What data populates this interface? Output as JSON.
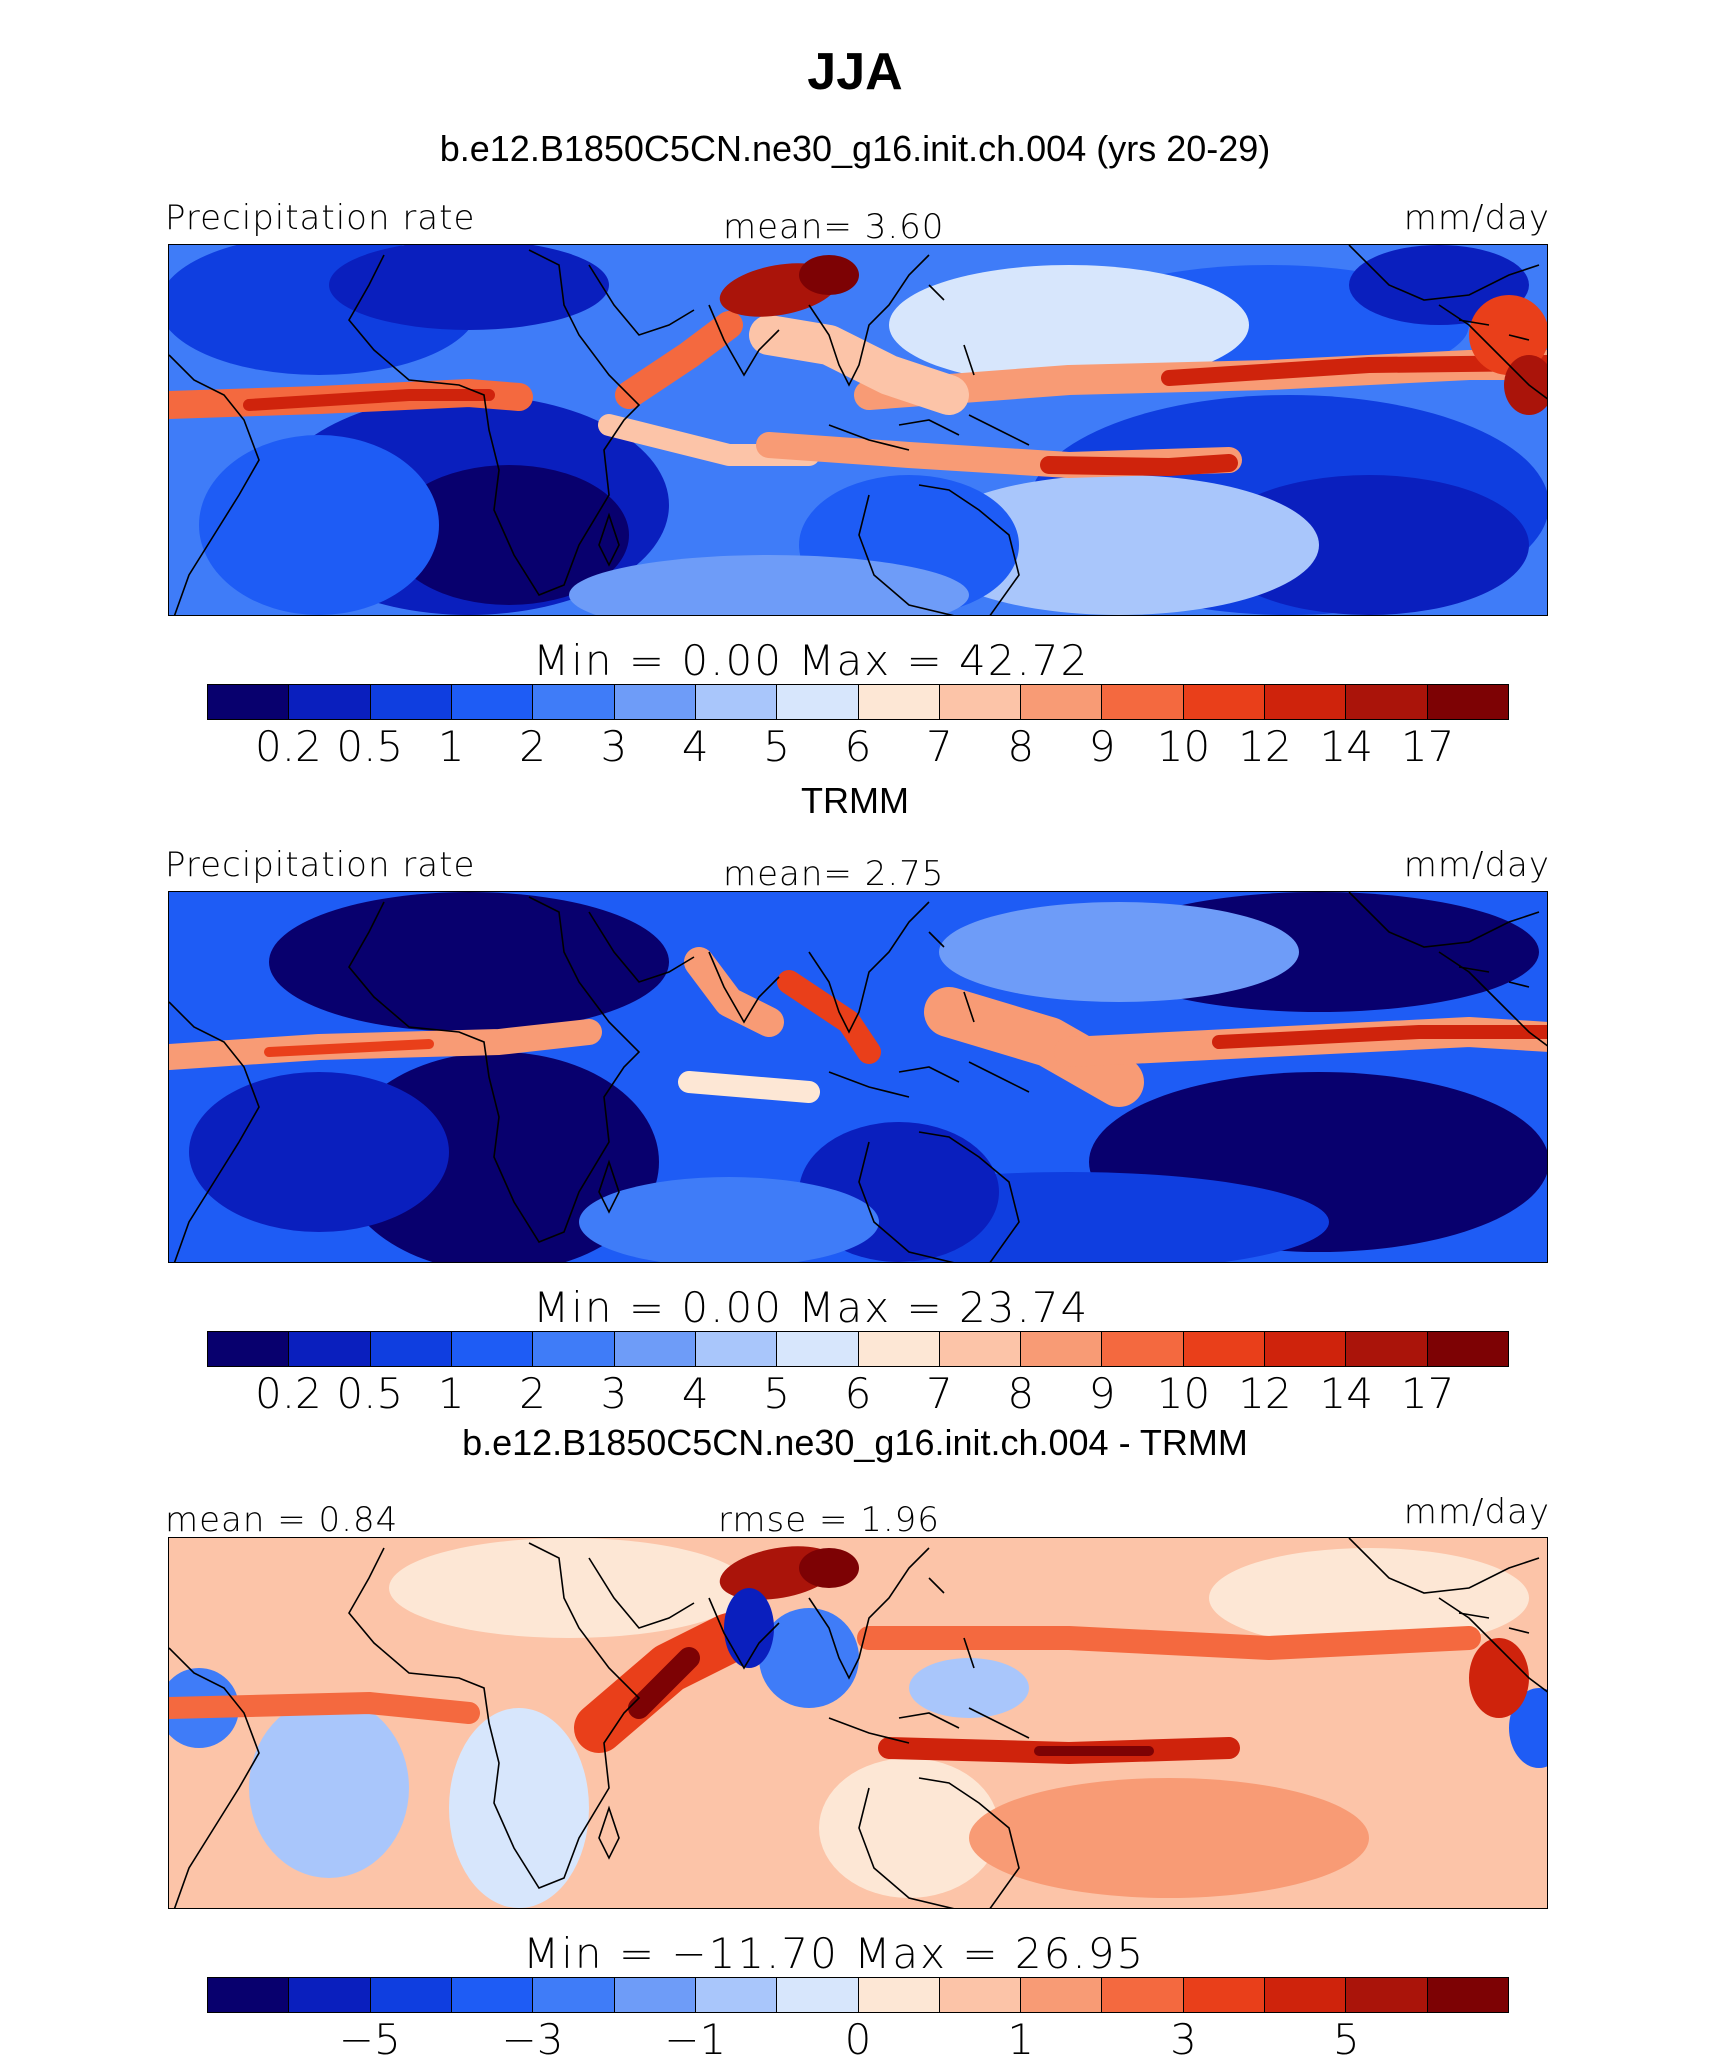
{
  "title": "JJA",
  "panels": [
    {
      "subtitle": "b.e12.B1850C5CN.ne30_g16.init.ch.004 (yrs 20-29)",
      "left_label": "Precipitation rate",
      "center_label": "mean=    3.60",
      "right_label": "mm/day",
      "minmax": "Min  =    0.00  Max  =   42.72",
      "colorbar_labels": [
        "0.2",
        "0.5",
        "1",
        "2",
        "3",
        "4",
        "5",
        "6",
        "7",
        "8",
        "9",
        "10",
        "12",
        "14",
        "17"
      ]
    },
    {
      "subtitle": "TRMM",
      "left_label": "Precipitation rate",
      "center_label": "mean=    2.75",
      "right_label": "mm/day",
      "minmax": "Min  =    0.00  Max  =   23.74",
      "colorbar_labels": [
        "0.2",
        "0.5",
        "1",
        "2",
        "3",
        "4",
        "5",
        "6",
        "7",
        "8",
        "9",
        "10",
        "12",
        "14",
        "17"
      ]
    },
    {
      "subtitle": "b.e12.B1850C5CN.ne30_g16.init.ch.004 - TRMM",
      "left_label": "mean  =    0.84",
      "center_label": "rmse  =    1.96",
      "right_label": "mm/day",
      "minmax": "Min  =  −11.70  Max  =   26.95",
      "colorbar_labels": [
        "−5",
        "−3",
        "−1",
        "0",
        "1",
        "3",
        "5"
      ]
    }
  ],
  "palette": [
    "#08006e",
    "#0a1fbe",
    "#0f3ee0",
    "#1e5cf5",
    "#3f7cf8",
    "#6e9cf8",
    "#a9c6fb",
    "#d7e6fc",
    "#fde7d5",
    "#fcc4a8",
    "#f89b75",
    "#f4693f",
    "#e93f1a",
    "#cf230c",
    "#aa140a",
    "#7d0204"
  ],
  "chart_data": [
    {
      "type": "heatmap",
      "title": "b.e12.B1850C5CN.ne30_g16.init.ch.004 (yrs 20-29)",
      "variable": "Precipitation rate",
      "units": "mm/day",
      "mean": 3.6,
      "min": 0.0,
      "max": 42.72,
      "levels": [
        0.2,
        0.5,
        1,
        2,
        3,
        4,
        5,
        6,
        7,
        8,
        9,
        10,
        12,
        14,
        17
      ]
    },
    {
      "type": "heatmap",
      "title": "TRMM",
      "variable": "Precipitation rate",
      "units": "mm/day",
      "mean": 2.75,
      "min": 0.0,
      "max": 23.74,
      "levels": [
        0.2,
        0.5,
        1,
        2,
        3,
        4,
        5,
        6,
        7,
        8,
        9,
        10,
        12,
        14,
        17
      ]
    },
    {
      "type": "heatmap",
      "title": "b.e12.B1850C5CN.ne30_g16.init.ch.004 - TRMM",
      "units": "mm/day",
      "mean": 0.84,
      "rmse": 1.96,
      "min": -11.7,
      "max": 26.95,
      "levels": [
        -5,
        -3,
        -1,
        0,
        1,
        3,
        5
      ]
    }
  ]
}
